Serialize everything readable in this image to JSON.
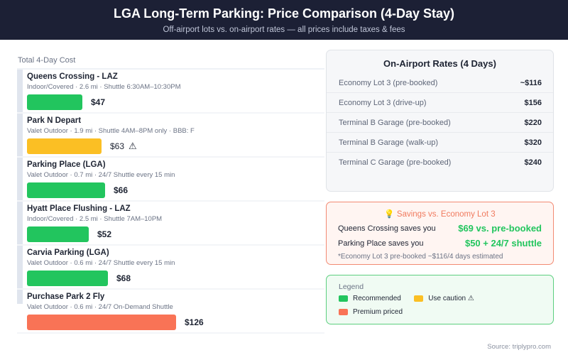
{
  "header": {
    "title": "LGA Long-Term Parking: Price Comparison (4-Day Stay)",
    "subtitle": "Off-airport lots vs. on-airport rates — all prices include taxes & fees"
  },
  "chart_data": {
    "type": "bar",
    "orientation": "horizontal",
    "xlabel": "Total 4-Day Cost",
    "categories": [
      "Queens Crossing - LAZ",
      "Park N Depart",
      "Parking Place (LGA)",
      "Hyatt Place Flushing - LAZ",
      "Carvia Parking (LGA)",
      "Purchase Park 2 Fly"
    ],
    "values": [
      47,
      63,
      66,
      52,
      68,
      126
    ],
    "details": [
      "Indoor/Covered · 2.6 mi · Shuttle 6:30AM–10:30PM",
      "Valet Outdoor · 1.9 mi · Shuttle 4AM–8PM only · BBB: F",
      "Valet Outdoor · 0.7 mi · 24/7 Shuttle every 15 min",
      "Indoor/Covered · 2.5 mi · Shuttle 7AM–10PM",
      "Valet Outdoor · 0.6 mi · 24/7 Shuttle every 15 min",
      "Valet Outdoor · 0.6 mi · 24/7 On-Demand Shuttle"
    ],
    "labels": [
      "$47",
      "$63",
      "$66",
      "$52",
      "$68",
      "$126"
    ],
    "status": [
      "recommended",
      "caution",
      "recommended",
      "recommended",
      "recommended",
      "premium"
    ]
  },
  "colors": {
    "recommended": "#22c55e",
    "caution": "#fbbf24",
    "premium": "#f97356"
  },
  "on_airport": {
    "title": "On-Airport Rates (4 Days)",
    "rows": [
      {
        "label": "Economy Lot 3 (pre-booked)",
        "value": "~$116"
      },
      {
        "label": "Economy Lot 3 (drive-up)",
        "value": "$156"
      },
      {
        "label": "Terminal B Garage (pre-booked)",
        "value": "$220"
      },
      {
        "label": "Terminal B Garage (walk-up)",
        "value": "$320"
      },
      {
        "label": "Terminal C Garage (pre-booked)",
        "value": "$240"
      }
    ]
  },
  "savings": {
    "icon": "lightbulb-icon",
    "title": "Savings vs. Economy Lot 3",
    "rows": [
      {
        "label": "Queens Crossing saves you",
        "value": "$69 vs. pre-booked"
      },
      {
        "label": "Parking Place saves you",
        "value": "$50 + 24/7 shuttle"
      }
    ],
    "note": "*Economy Lot 3 pre-booked ~$116/4 days estimated"
  },
  "legend": {
    "title": "Legend",
    "items": [
      {
        "label": "Recommended",
        "key": "recommended"
      },
      {
        "label": "Use caution",
        "key": "caution",
        "icon": "warning-icon"
      },
      {
        "label": "Premium priced",
        "key": "premium"
      }
    ]
  },
  "source": "Source: triplypro.com"
}
